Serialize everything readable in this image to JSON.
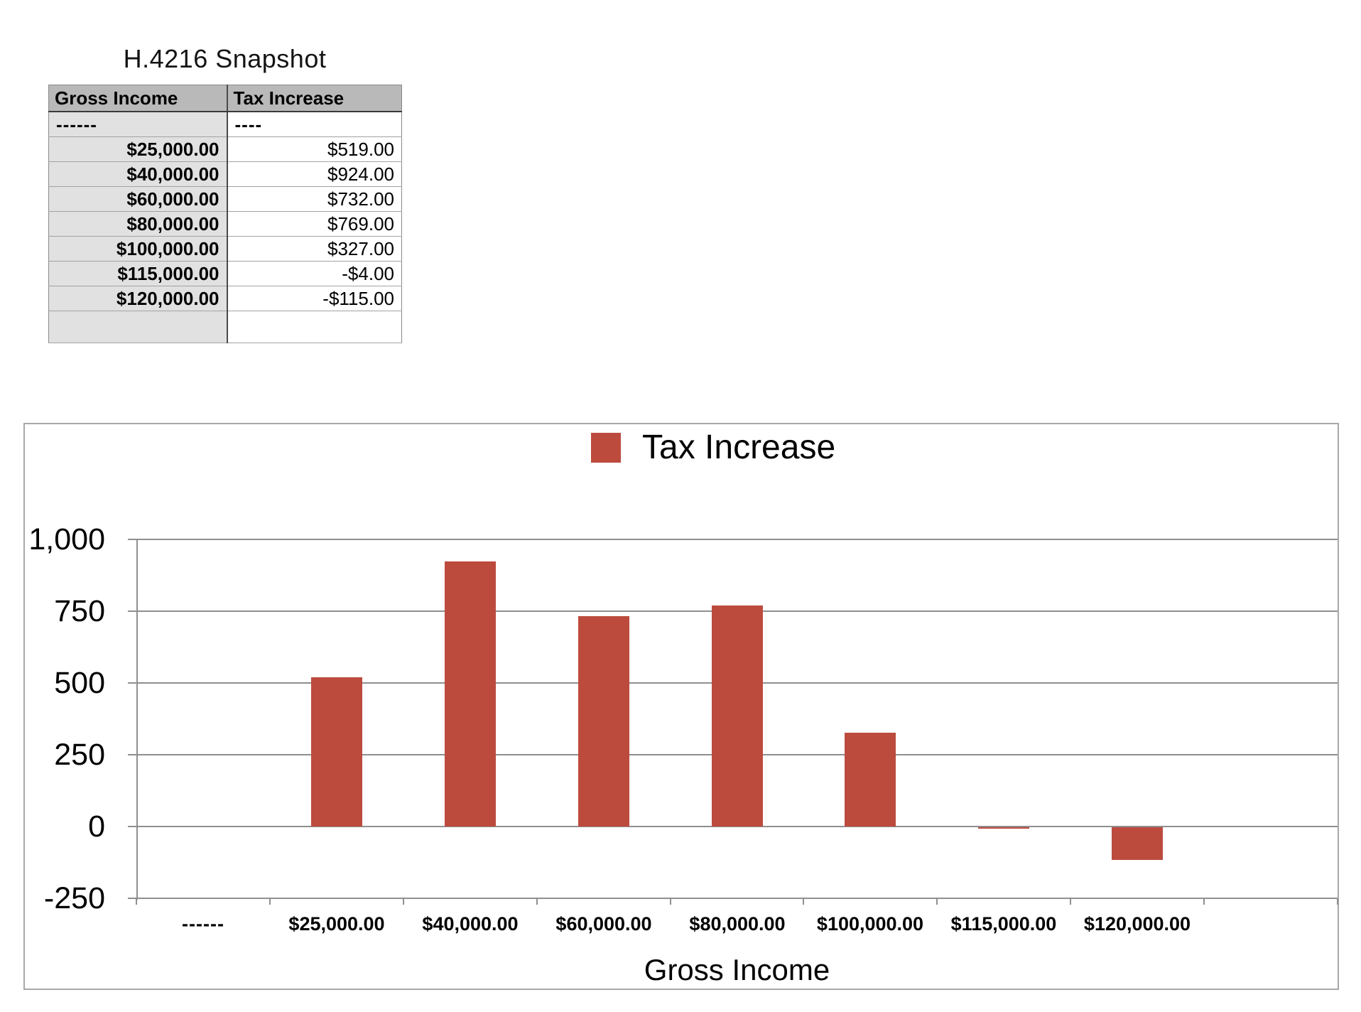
{
  "page": {
    "background": "#ffffff"
  },
  "snapshot_table": {
    "title": "H.4216 Snapshot",
    "columns": [
      "Gross Income",
      "Tax Increase"
    ],
    "rows": [
      [
        "------",
        "----"
      ],
      [
        "$25,000.00",
        "$519.00"
      ],
      [
        "$40,000.00",
        "$924.00"
      ],
      [
        "$60,000.00",
        "$732.00"
      ],
      [
        "$80,000.00",
        "$769.00"
      ],
      [
        "$100,000.00",
        "$327.00"
      ],
      [
        "$115,000.00",
        "-$4.00"
      ],
      [
        "$120,000.00",
        "-$115.00"
      ],
      [
        "",
        ""
      ]
    ],
    "header_bg": "#b9b9b9",
    "first_column_bg": "#e1e1e1"
  },
  "chart_data": {
    "type": "bar",
    "categories": [
      "------",
      "$25,000.00",
      "$40,000.00",
      "$60,000.00",
      "$80,000.00",
      "$100,000.00",
      "$115,000.00",
      "$120,000.00",
      ""
    ],
    "series": [
      {
        "name": "Tax Increase",
        "values": [
          null,
          519,
          924,
          732,
          769,
          327,
          -4,
          -115,
          null
        ]
      }
    ],
    "title": "",
    "xlabel": "Gross Income",
    "ylabel": "",
    "yticks": [
      1000,
      750,
      500,
      250,
      0,
      -250
    ],
    "ytick_labels": [
      "1,000",
      "750",
      "500",
      "250",
      "0",
      "-250"
    ],
    "ylim": [
      -250,
      1000
    ],
    "grid": true,
    "legend_position": "top-center",
    "bar_color": "#bc4b3e",
    "axis_color": "#8f8f8f"
  }
}
